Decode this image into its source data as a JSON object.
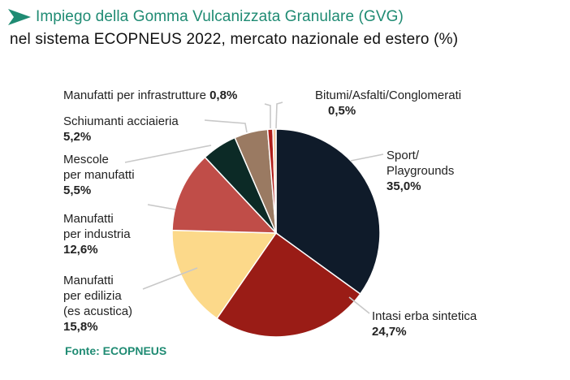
{
  "header": {
    "title": "Impiego della Gomma Vulcanizzata Granulare (GVG)",
    "subtitle": "nel sistema ECOPNEUS 2022, mercato nazionale ed estero (%)"
  },
  "source": "Fonte: ECOPNEUS",
  "colors": {
    "accent": "#1f8b73"
  },
  "chart_data": {
    "type": "pie",
    "title": "Impiego della Gomma Vulcanizzata Granulare (GVG)",
    "subtitle": "nel sistema ECOPNEUS 2022, mercato nazionale ed estero (%)",
    "slices": [
      {
        "label": [
          "Sport/",
          "Playgrounds"
        ],
        "value": 35.0,
        "value_label": "35,0%",
        "color": "#0f1b2a"
      },
      {
        "label": [
          "Intasi erba sintetica"
        ],
        "value": 24.7,
        "value_label": "24,7%",
        "color": "#9a1c16"
      },
      {
        "label": [
          "Manufatti",
          "per edilizia",
          "(es acustica)"
        ],
        "value": 15.8,
        "value_label": "15,8%",
        "color": "#fcd98a"
      },
      {
        "label": [
          "Manufatti",
          "per industria"
        ],
        "value": 12.6,
        "value_label": "12,6%",
        "color": "#c04d48"
      },
      {
        "label": [
          "Mescole",
          "per manufatti"
        ],
        "value": 5.5,
        "value_label": "5,5%",
        "color": "#0c2a26"
      },
      {
        "label": [
          "Schiumanti acciaieria"
        ],
        "value": 5.2,
        "value_label": "5,2%",
        "color": "#9a7a62"
      },
      {
        "label": [
          "Manufatti per infrastrutture"
        ],
        "value": 0.8,
        "value_label": "0,8%",
        "color": "#b01f1a"
      },
      {
        "label": [
          "Bitumi/Asfalti/Conglomerati"
        ],
        "value": 0.5,
        "value_label": "0,5%",
        "color": "#f5c9a0"
      }
    ]
  }
}
